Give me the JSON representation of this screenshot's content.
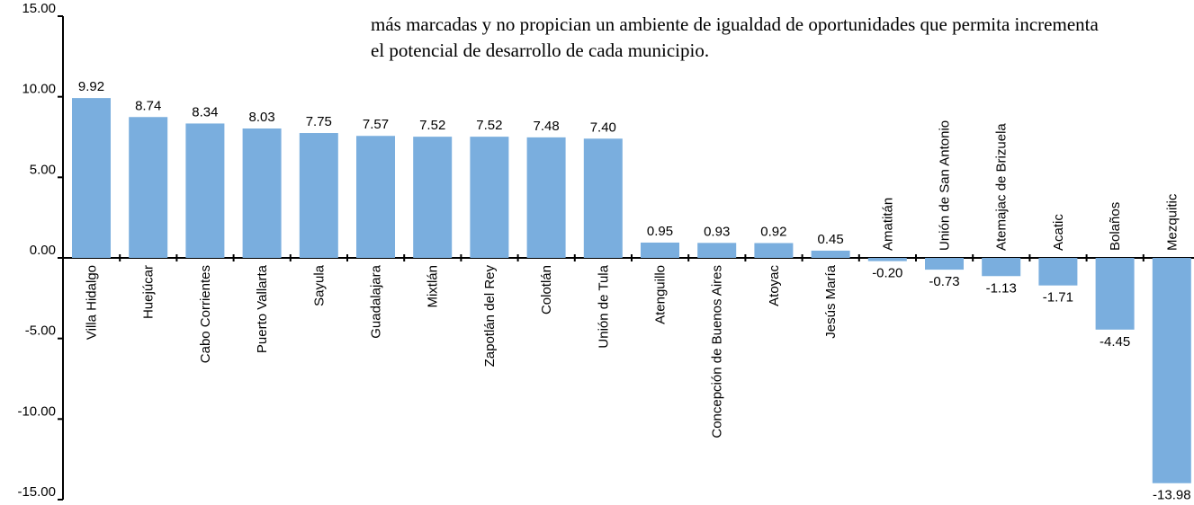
{
  "chart_data": {
    "type": "bar",
    "annotations": [
      "más marcadas y no propician un ambiente de igualdad de oportunidades que permita incrementa",
      "el potencial de desarrollo de cada municipio."
    ],
    "categories": [
      "Villa Hidalgo",
      "Huejúcar",
      "Cabo Corrientes",
      "Puerto Vallarta",
      "Sayula",
      "Guadalajara",
      "Mixtlán",
      "Zapotlán del Rey",
      "Colotlán",
      "Unión de Tula",
      "Atenguillo",
      "Concepción de Buenos Aires",
      "Atoyac",
      "Jesús María",
      "Amatitán",
      "Unión de San Antonio",
      "Atemajac de Brizuela",
      "Acatic",
      "Bolaños",
      "Mezquitic"
    ],
    "values": [
      9.92,
      8.74,
      8.34,
      8.03,
      7.75,
      7.57,
      7.52,
      7.52,
      7.48,
      7.4,
      0.95,
      0.93,
      0.92,
      0.45,
      -0.2,
      -0.73,
      -1.13,
      -1.71,
      -4.45,
      -13.98
    ],
    "value_labels": [
      "9.92",
      "8.74",
      "8.34",
      "8.03",
      "7.75",
      "7.57",
      "7.52",
      "7.52",
      "7.48",
      "7.40",
      "0.95",
      "0.93",
      "0.92",
      "0.45",
      "-0.20",
      "-0.73",
      "-1.13",
      "-1.71",
      "-4.45",
      "-13.98"
    ],
    "color": "#7aaede",
    "ylim": [
      -15,
      15
    ],
    "yticks": [
      {
        "value": -15,
        "label": "-15.00"
      },
      {
        "value": -10,
        "label": "-10.00"
      },
      {
        "value": -5,
        "label": "-5.00"
      },
      {
        "value": 0,
        "label": "0.00"
      },
      {
        "value": 5,
        "label": "5.00"
      },
      {
        "value": 10,
        "label": "10.00"
      },
      {
        "value": 15,
        "label": "15.00"
      }
    ]
  }
}
